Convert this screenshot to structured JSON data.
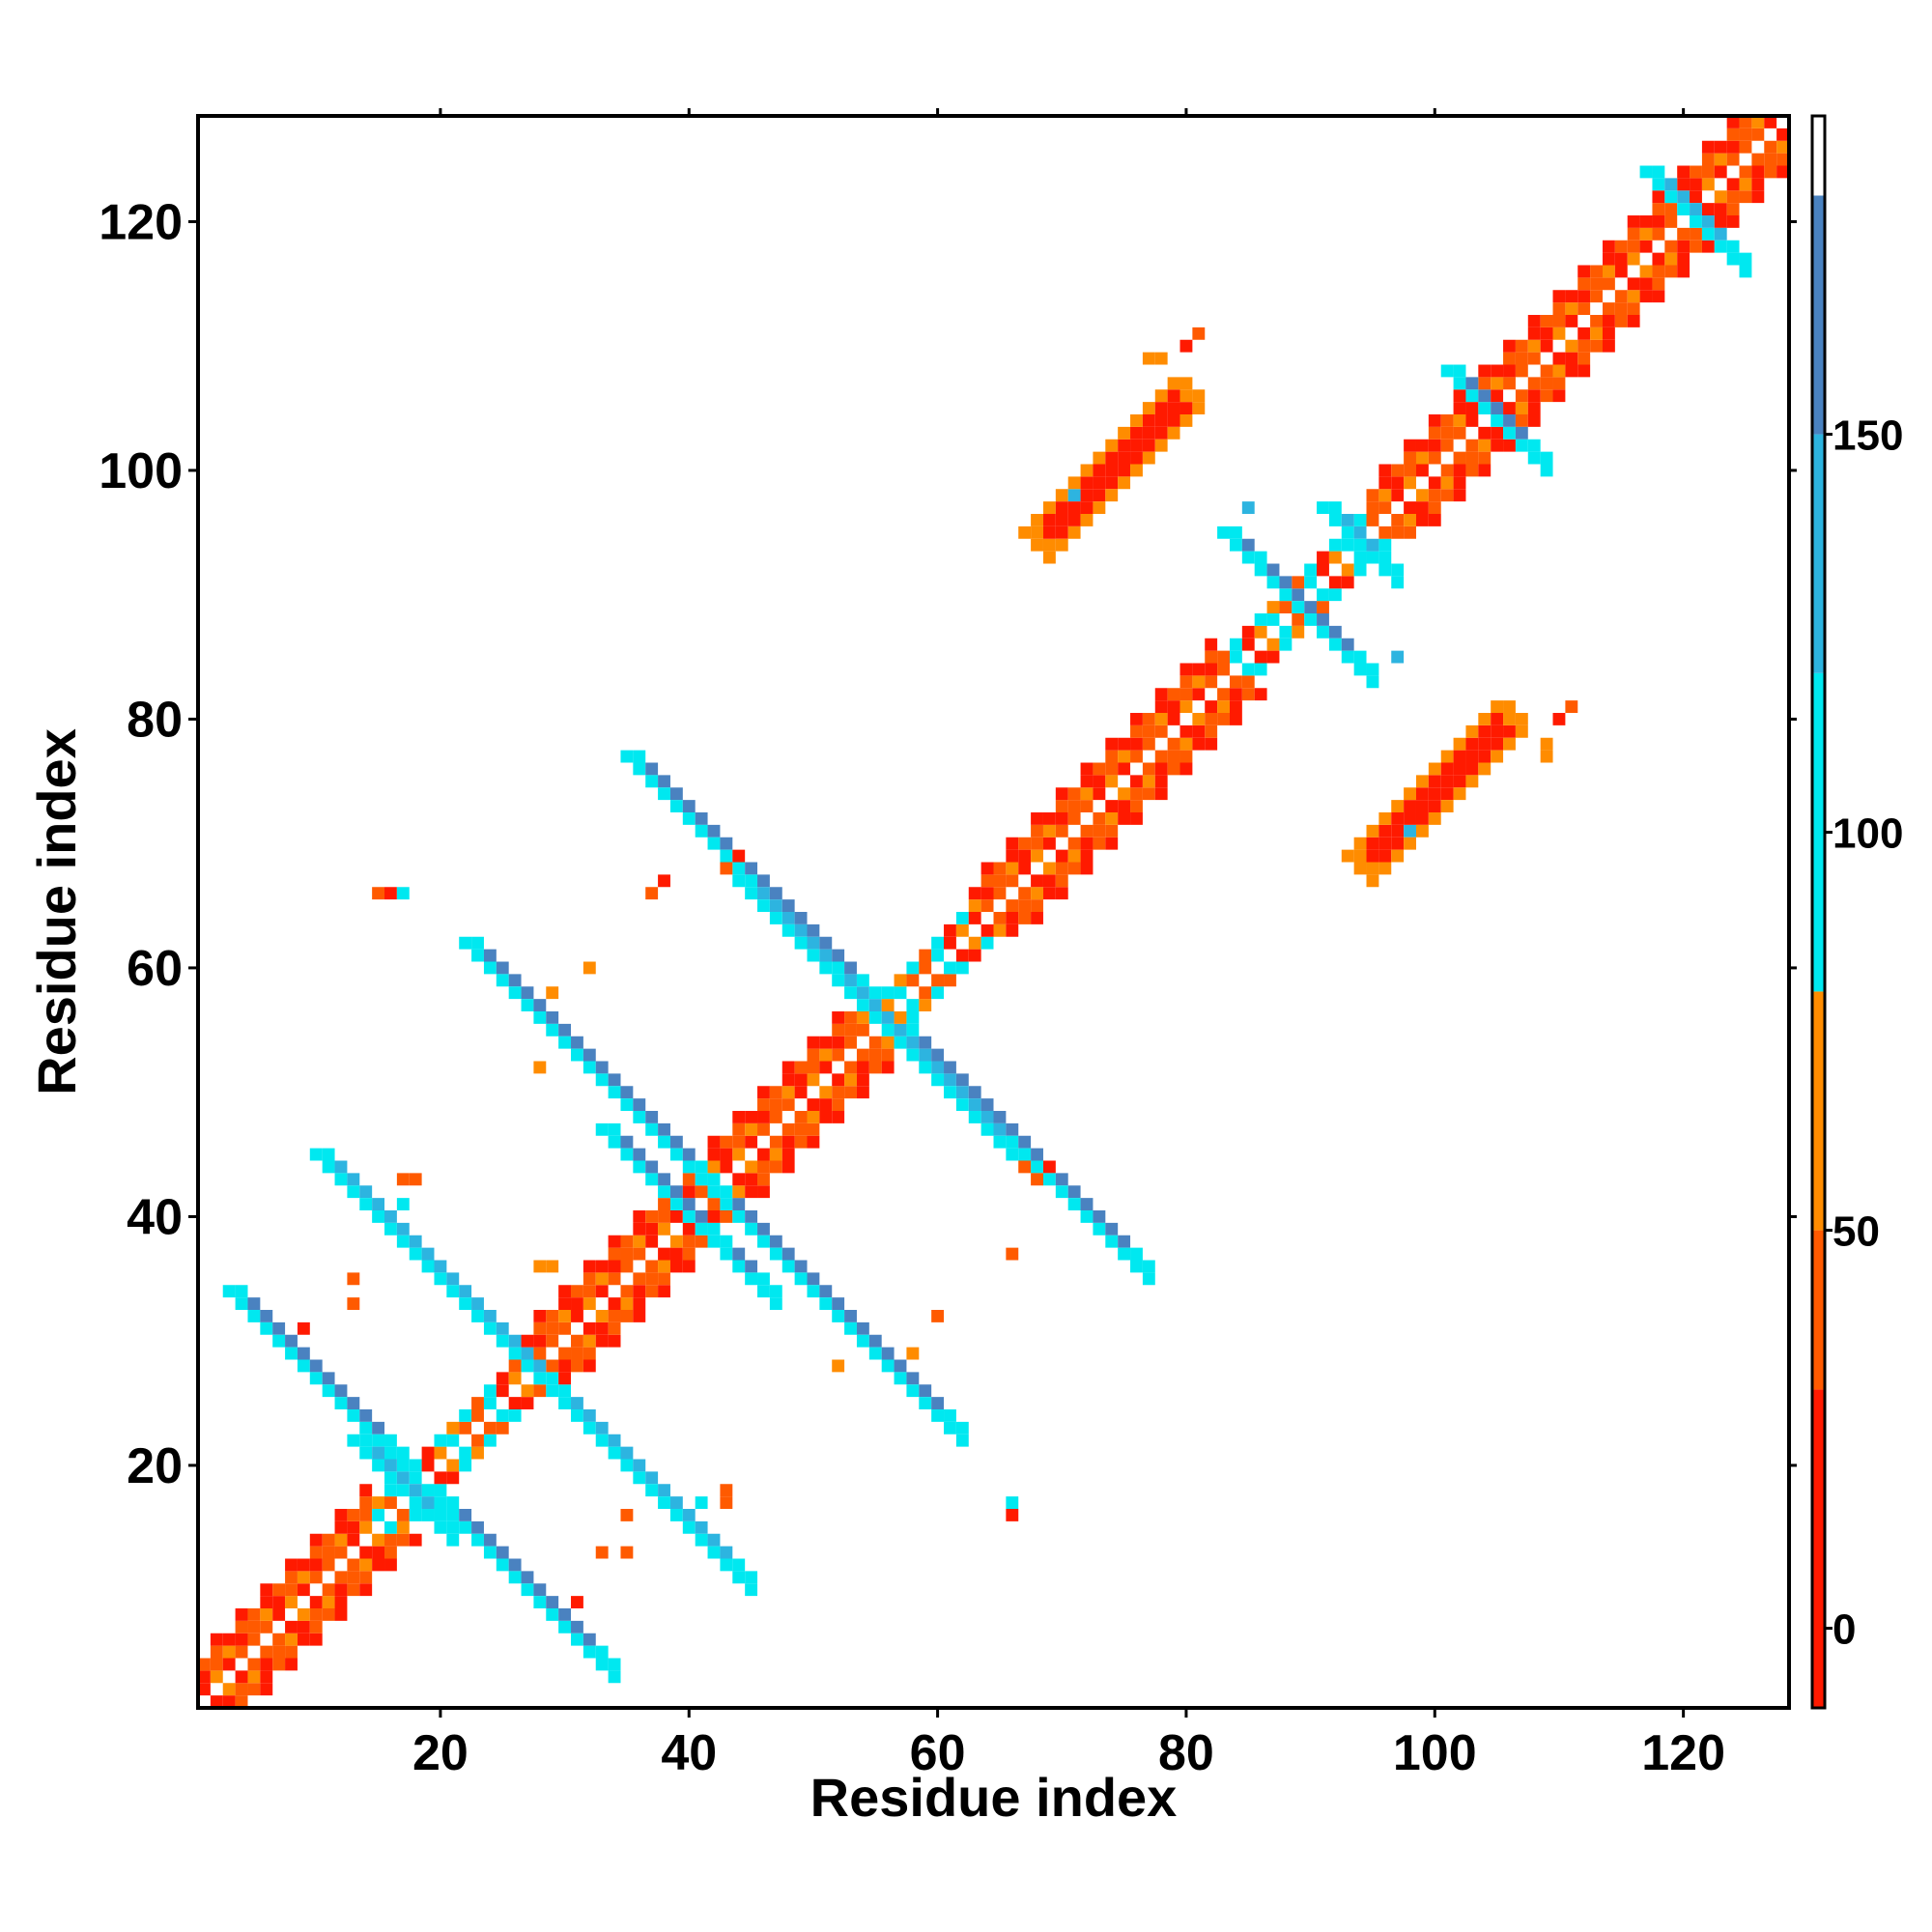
{
  "chart_data": {
    "type": "heatmap",
    "title": "",
    "xlabel": "Residue index",
    "ylabel": "Residue index",
    "xlim": [
      0.5,
      128.5
    ],
    "ylim": [
      0.5,
      128.5
    ],
    "x_ticks": [
      20,
      40,
      60,
      80,
      100,
      120
    ],
    "y_ticks": [
      20,
      40,
      60,
      80,
      100,
      120
    ],
    "x_tick_labels": [
      "20",
      "40",
      "60",
      "80",
      "100",
      "120"
    ],
    "y_tick_labels": [
      "20",
      "40",
      "60",
      "80",
      "100",
      "120"
    ],
    "grid": false,
    "colorbar": {
      "range": [
        -10,
        190
      ],
      "ticks": [
        0,
        50,
        100,
        150
      ],
      "tick_labels": [
        "0",
        "50",
        "100",
        "150"
      ],
      "bands": [
        {
          "from": -10,
          "to": 30,
          "color": "#ff1a00"
        },
        {
          "from": 30,
          "to": 50,
          "color": "#ff5a00"
        },
        {
          "from": 50,
          "to": 80,
          "color": "#ff8c00"
        },
        {
          "from": 80,
          "to": 120,
          "color": "#00e8f0"
        },
        {
          "from": 120,
          "to": 150,
          "color": "#2db4e0"
        },
        {
          "from": 150,
          "to": 180,
          "color": "#4a82c0"
        },
        {
          "from": 180,
          "to": 190,
          "color": "#ffffff"
        }
      ]
    },
    "diagonal": {
      "range": [
        1,
        128
      ],
      "pattern": [
        {
          "offset": 1,
          "values": [
            40,
            25,
            60,
            15,
            45,
            30
          ]
        },
        {
          "offset": 2,
          "values": [
            55,
            20,
            35,
            65,
            10,
            40
          ]
        }
      ]
    },
    "helix_diagonal_segments": [
      [
        1,
        14
      ],
      [
        26,
        54
      ],
      [
        55,
        82
      ],
      [
        95,
        128
      ]
    ],
    "sheet_diagonal_segments": [
      [
        15,
        25
      ],
      [
        55,
        62
      ],
      [
        83,
        94
      ]
    ],
    "blocks": [
      {
        "cx": 27,
        "cy": 10,
        "len": 6,
        "dir": -1,
        "width": 2,
        "value": 160
      },
      {
        "cx": 10,
        "cy": 27,
        "len": 6,
        "dir": -1,
        "width": 2,
        "value": 155
      },
      {
        "cx": 35,
        "cy": 20,
        "len": 9,
        "dir": -1,
        "width": 2,
        "value": 160
      },
      {
        "cx": 20,
        "cy": 35,
        "len": 9,
        "dir": -1,
        "width": 2,
        "value": 160
      },
      {
        "cx": 52,
        "cy": 32,
        "len": 9,
        "dir": -1,
        "width": 2,
        "value": 165
      },
      {
        "cx": 32,
        "cy": 52,
        "len": 9,
        "dir": -1,
        "width": 2,
        "value": 165
      },
      {
        "cx": 67,
        "cy": 45,
        "len": 9,
        "dir": -1,
        "width": 2,
        "value": 160
      },
      {
        "cx": 45,
        "cy": 67,
        "len": 9,
        "dir": -1,
        "width": 2,
        "value": 150
      },
      {
        "cx": 52,
        "cy": 59,
        "len": 7,
        "dir": -1,
        "width": 2,
        "value": 160
      },
      {
        "cx": 59,
        "cy": 52,
        "len": 7,
        "dir": -1,
        "width": 2,
        "value": 160
      },
      {
        "cx": 17,
        "cy": 18,
        "len": 3,
        "dir": -1,
        "width": 2,
        "value": 160
      },
      {
        "cx": 42,
        "cy": 38,
        "len": 4,
        "dir": -1,
        "width": 2,
        "value": 150
      },
      {
        "cx": 38,
        "cy": 42,
        "len": 4,
        "dir": -1,
        "width": 2,
        "value": 150
      },
      {
        "cx": 88,
        "cy": 90,
        "len": 4,
        "dir": -1,
        "width": 2,
        "value": 155
      },
      {
        "cx": 90,
        "cy": 88,
        "len": 4,
        "dir": -1,
        "width": 2,
        "value": 155
      },
      {
        "cx": 94,
        "cy": 94,
        "len": 2,
        "dir": -1,
        "width": 2,
        "value": 130
      },
      {
        "cx": 105,
        "cy": 104,
        "len": 3,
        "dir": -1,
        "width": 2,
        "value": 150
      },
      {
        "cx": 121,
        "cy": 120,
        "len": 3,
        "dir": -1,
        "width": 2,
        "value": 120
      },
      {
        "cx": 74,
        "cy": 100,
        "len": 6,
        "dir": 1,
        "width": 2,
        "value": 15
      },
      {
        "cx": 100,
        "cy": 74,
        "len": 6,
        "dir": 1,
        "width": 2,
        "value": 15
      }
    ],
    "points": [
      [
        16,
        66,
        25
      ],
      [
        17,
        66,
        110
      ],
      [
        15,
        66,
        30
      ],
      [
        66,
        16,
        25
      ],
      [
        66,
        17,
        110
      ],
      [
        69,
        44,
        25
      ],
      [
        68,
        43,
        35
      ],
      [
        67,
        44,
        30
      ],
      [
        44,
        69,
        25
      ],
      [
        43,
        68,
        35
      ],
      [
        37,
        66,
        30
      ],
      [
        38,
        67,
        25
      ],
      [
        66,
        37,
        30
      ],
      [
        60,
        32,
        40
      ],
      [
        58,
        29,
        55
      ],
      [
        32,
        60,
        60
      ],
      [
        29,
        58,
        55
      ],
      [
        31,
        9,
        20
      ],
      [
        9,
        31,
        25
      ],
      [
        33,
        13,
        30
      ],
      [
        13,
        33,
        45
      ],
      [
        35,
        13,
        45
      ],
      [
        13,
        35,
        45
      ],
      [
        18,
        43,
        40
      ],
      [
        43,
        18,
        40
      ],
      [
        43,
        17,
        30
      ],
      [
        17,
        43,
        30
      ],
      [
        41,
        17,
        100
      ],
      [
        17,
        41,
        100
      ],
      [
        35,
        16,
        30
      ],
      [
        110,
        80,
        20
      ],
      [
        80,
        110,
        20
      ],
      [
        109,
        77,
        60
      ],
      [
        77,
        109,
        60
      ],
      [
        97,
        85,
        130
      ],
      [
        85,
        97,
        130
      ],
      [
        81,
        111,
        40
      ],
      [
        111,
        81,
        40
      ],
      [
        78,
        109,
        50
      ],
      [
        109,
        78,
        50
      ],
      [
        98,
        71,
        120
      ],
      [
        71,
        98,
        120
      ],
      [
        29,
        36,
        60
      ],
      [
        28,
        36,
        60
      ],
      [
        52,
        28,
        60
      ],
      [
        28,
        52,
        60
      ]
    ]
  }
}
